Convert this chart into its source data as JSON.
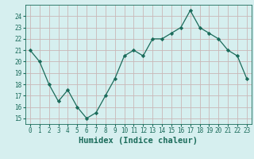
{
  "x": [
    0,
    1,
    2,
    3,
    4,
    5,
    6,
    7,
    8,
    9,
    10,
    11,
    12,
    13,
    14,
    15,
    16,
    17,
    18,
    19,
    20,
    21,
    22,
    23
  ],
  "y": [
    21,
    20,
    18,
    16.5,
    17.5,
    16,
    15,
    15.5,
    17,
    18.5,
    20.5,
    21,
    20.5,
    22,
    22,
    22.5,
    23,
    24.5,
    23,
    22.5,
    22,
    21,
    20.5,
    18.5
  ],
  "line_color": "#1a6b5a",
  "marker": "D",
  "marker_size": 2.2,
  "bg_color": "#d6efef",
  "grid_color": "#c9b8b8",
  "xlabel": "Humidex (Indice chaleur)",
  "xlim": [
    -0.5,
    23.5
  ],
  "ylim": [
    14.5,
    25
  ],
  "yticks": [
    15,
    16,
    17,
    18,
    19,
    20,
    21,
    22,
    23,
    24
  ],
  "xticks": [
    0,
    1,
    2,
    3,
    4,
    5,
    6,
    7,
    8,
    9,
    10,
    11,
    12,
    13,
    14,
    15,
    16,
    17,
    18,
    19,
    20,
    21,
    22,
    23
  ],
  "tick_fontsize": 5.5,
  "xlabel_fontsize": 7.5,
  "label_color": "#1a6b5a"
}
